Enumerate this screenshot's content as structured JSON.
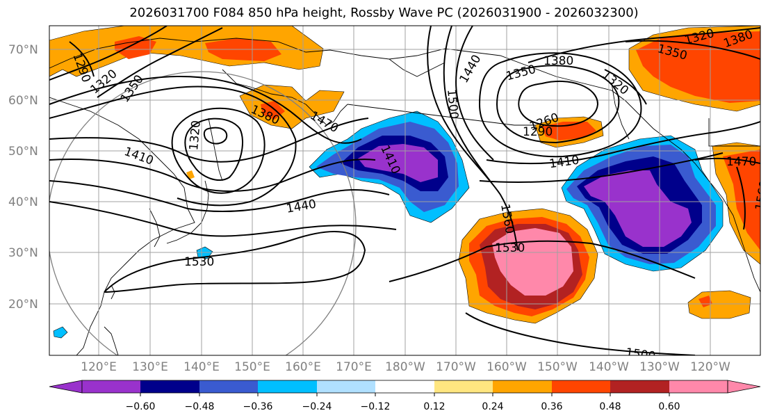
{
  "title": "2026031700 F084 850 hPa height, Rossby Wave PC (2026031900 - 2026032300)",
  "lat_labels": [
    "70°N",
    "60°N",
    "50°N",
    "40°N",
    "30°N",
    "20°N"
  ],
  "lon_labels": [
    "120°E",
    "130°E",
    "140°E",
    "150°E",
    "160°E",
    "170°E",
    "180°W",
    "170°W",
    "160°W",
    "150°W",
    "140°W",
    "130°W",
    "120°W"
  ],
  "contour_labels": [
    "1290",
    "1320",
    "1350",
    "1380",
    "1470",
    "1500",
    "1440",
    "1350",
    "1380",
    "1320",
    "1260",
    "1290",
    "1410",
    "1410",
    "1440",
    "1530",
    "1560",
    "1530",
    "1500",
    "1470",
    "1560",
    "1320",
    "1410",
    "1350",
    "1320",
    "1380"
  ],
  "colorbar": {
    "ticks": [
      "−0.60",
      "−0.48",
      "−0.36",
      "−0.24",
      "−0.12",
      "0.12",
      "0.24",
      "0.36",
      "0.48",
      "0.60"
    ],
    "colors": [
      "#9932cc",
      "#00008b",
      "#3a5bd0",
      "#00bfff",
      "#b0e0ff",
      "#ffffff",
      "#ffe680",
      "#ffa500",
      "#ff4500",
      "#b22222",
      "#ff88aa"
    ]
  },
  "colors": {
    "purple": "#9932cc",
    "navy": "#00008b",
    "blue": "#3a5bd0",
    "cyan": "#00bfff",
    "orange": "#ffa500",
    "red": "#ff4500",
    "darkred": "#b22222",
    "pink": "#ff88aa",
    "grid": "#a0a0a0",
    "coast": "#000000"
  }
}
